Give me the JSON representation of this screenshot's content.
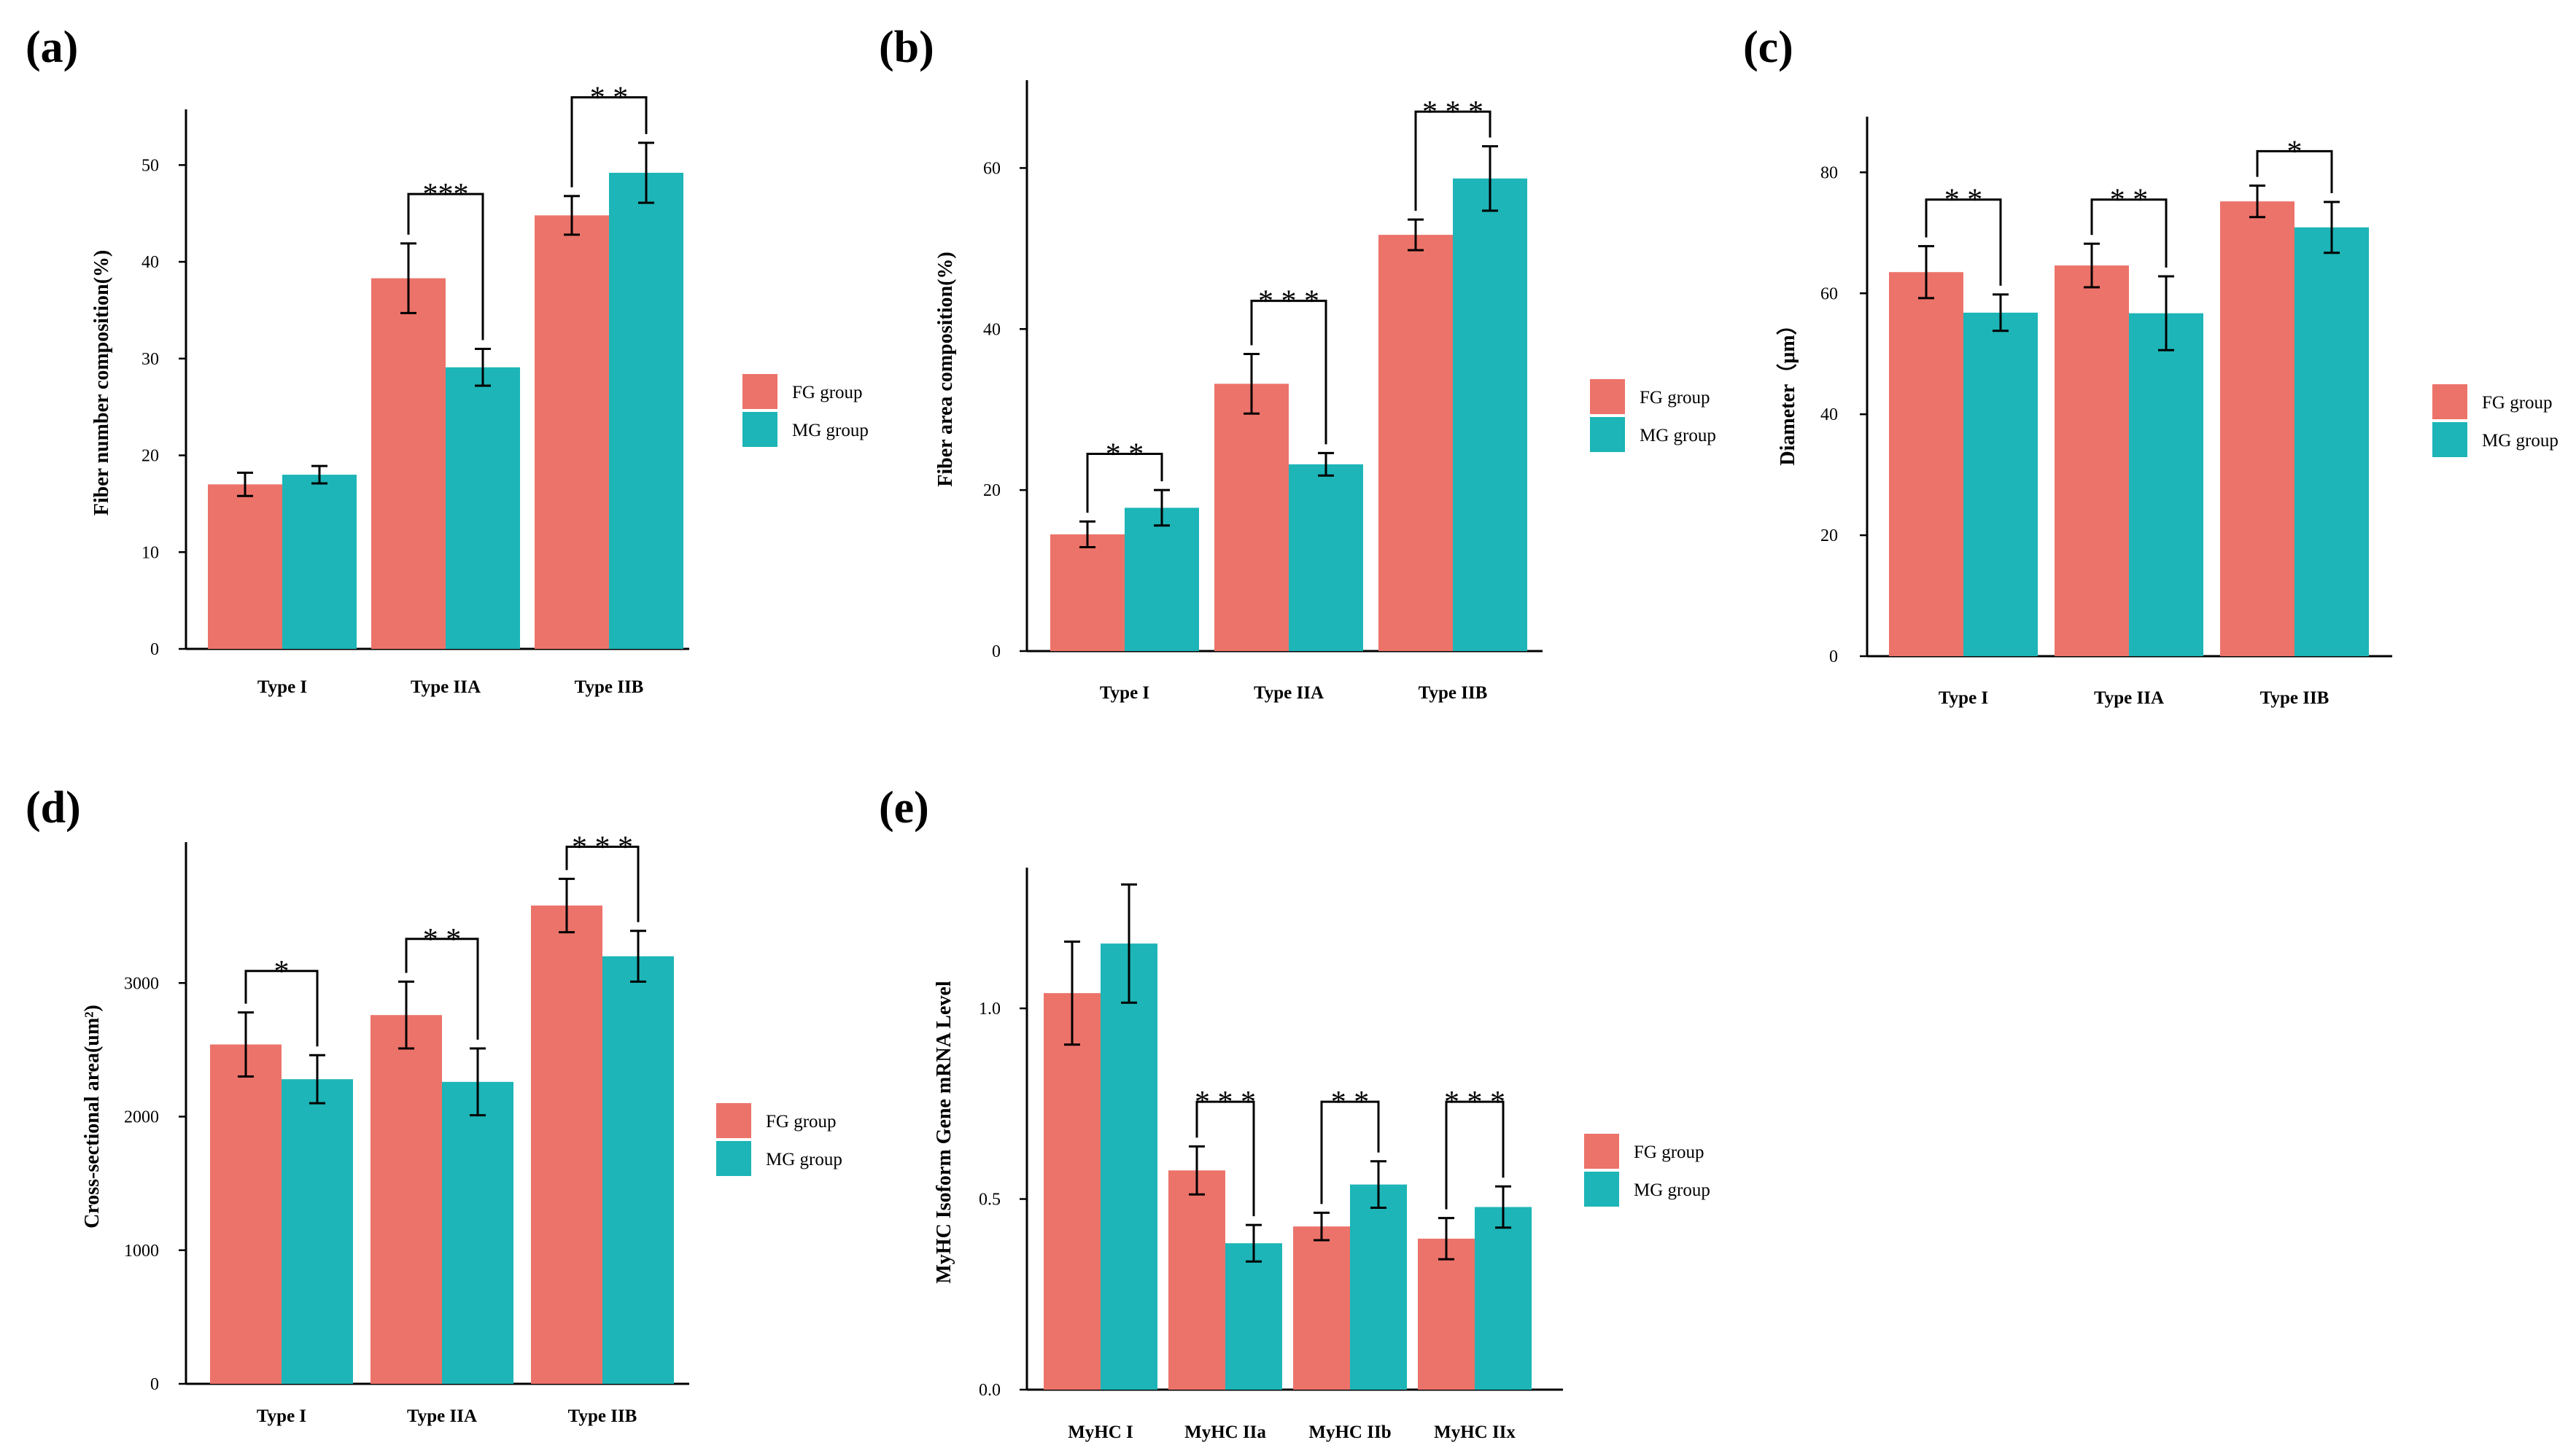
{
  "colors": {
    "fg": "#ec736a",
    "mg": "#1db5b7",
    "axis": "#000000"
  },
  "chart_data": [
    {
      "type": "bar",
      "panel": "(a)",
      "ylabel": "Fiber number composition(%)",
      "categories": [
        "Type I",
        "Type IIA",
        "Type IIB"
      ],
      "ylim": [
        0,
        55
      ],
      "yticks": [
        0,
        10,
        20,
        30,
        40,
        50
      ],
      "series": [
        {
          "name": "FG group",
          "values": [
            17.0,
            38.3,
            44.8
          ],
          "errors": [
            1.2,
            3.6,
            2.0
          ]
        },
        {
          "name": "MG group",
          "values": [
            18.0,
            29.1,
            49.2
          ],
          "errors": [
            0.9,
            1.9,
            3.1
          ]
        }
      ],
      "significance": [
        {
          "category": 1,
          "label": "***",
          "bracket": 47.0
        },
        {
          "category": 2,
          "label": "* *",
          "bracket": 57.0
        }
      ]
    },
    {
      "type": "bar",
      "panel": "(b)",
      "ylabel": "Fiber area composition(%)",
      "categories": [
        "Type I",
        "Type IIA",
        "Type IIB"
      ],
      "ylim": [
        0,
        70
      ],
      "yticks": [
        0,
        20,
        40,
        60
      ],
      "series": [
        {
          "name": "FG group",
          "values": [
            14.5,
            33.2,
            51.7
          ],
          "errors": [
            1.6,
            3.7,
            1.9
          ]
        },
        {
          "name": "MG group",
          "values": [
            17.8,
            23.2,
            58.7
          ],
          "errors": [
            2.2,
            1.4,
            4.0
          ]
        }
      ],
      "significance": [
        {
          "category": 0,
          "label": "* *",
          "bracket": 24.5
        },
        {
          "category": 1,
          "label": "* * *",
          "bracket": 43.5
        },
        {
          "category": 2,
          "label": "* * *",
          "bracket": 67.0
        }
      ]
    },
    {
      "type": "bar",
      "panel": "(c)",
      "ylabel": "Diameter（μm）",
      "categories": [
        "Type I",
        "Type IIA",
        "Type IIB"
      ],
      "ylim": [
        0,
        88
      ],
      "yticks": [
        0,
        20,
        40,
        60,
        80
      ],
      "series": [
        {
          "name": "FG group",
          "values": [
            63.5,
            64.6,
            75.2
          ],
          "errors": [
            4.3,
            3.6,
            2.6
          ]
        },
        {
          "name": "MG group",
          "values": [
            56.8,
            56.7,
            70.9
          ],
          "errors": [
            3.0,
            6.1,
            4.2
          ]
        }
      ],
      "significance": [
        {
          "category": 0,
          "label": "* *",
          "bracket": 75.5
        },
        {
          "category": 1,
          "label": "* *",
          "bracket": 75.5
        },
        {
          "category": 2,
          "label": "*",
          "bracket": 83.5
        }
      ]
    },
    {
      "type": "bar",
      "panel": "(d)",
      "ylabel": "Cross-sectional area(um²)",
      "categories": [
        "Type I",
        "Type IIA",
        "Type IIB"
      ],
      "ylim": [
        0,
        4000
      ],
      "yticks": [
        0,
        1000,
        2000,
        3000
      ],
      "series": [
        {
          "name": "FG group",
          "values": [
            2540,
            2760,
            3580
          ],
          "errors": [
            240,
            250,
            200
          ]
        },
        {
          "name": "MG group",
          "values": [
            2280,
            2260,
            3200
          ],
          "errors": [
            180,
            250,
            190
          ]
        }
      ],
      "significance": [
        {
          "category": 0,
          "label": "*",
          "bracket": 3090
        },
        {
          "category": 1,
          "label": "* *",
          "bracket": 3330
        },
        {
          "category": 2,
          "label": "* * *",
          "bracket": 4020
        }
      ]
    },
    {
      "type": "bar",
      "panel": "(e)",
      "ylabel": "MyHC Isoform Gene mRNA Level",
      "categories": [
        "MyHC I",
        "MyHC IIa",
        "MyHC IIb",
        "MyHC IIx"
      ],
      "ylim": [
        0,
        1.35
      ],
      "yticks": [
        0.0,
        0.5,
        1.0
      ],
      "tickFormat": 1,
      "series": [
        {
          "name": "FG group",
          "values": [
            1.04,
            0.575,
            0.428,
            0.396
          ],
          "errors": [
            0.135,
            0.063,
            0.036,
            0.054
          ]
        },
        {
          "name": "MG group",
          "values": [
            1.17,
            0.384,
            0.538,
            0.479
          ],
          "errors": [
            0.155,
            0.048,
            0.061,
            0.054
          ]
        }
      ],
      "significance": [
        {
          "category": 1,
          "label": "* * *",
          "bracket": 0.755
        },
        {
          "category": 2,
          "label": "* *",
          "bracket": 0.755
        },
        {
          "category": 3,
          "label": "* * *",
          "bracket": 0.755
        }
      ]
    }
  ]
}
